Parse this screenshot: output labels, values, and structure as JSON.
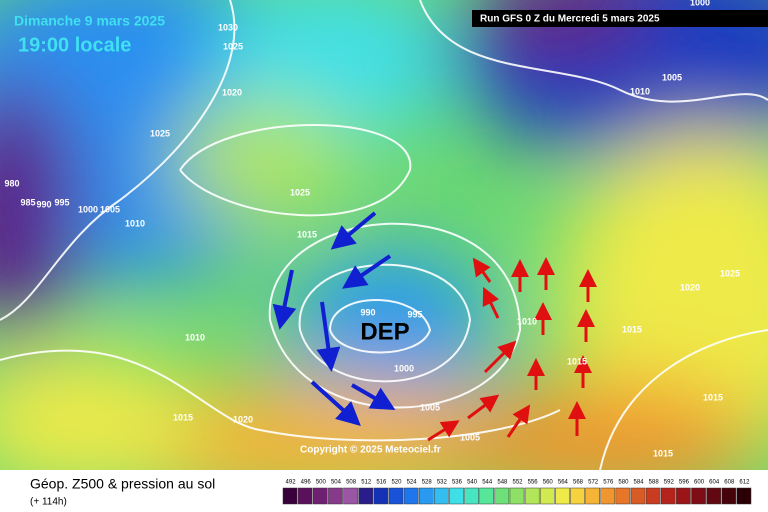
{
  "header": {
    "date": "Dimanche 9 mars 2025",
    "time": "19:00 locale",
    "run": "Run GFS 0 Z du Mercredi 5 mars 2025"
  },
  "map": {
    "low_label": "DEP",
    "copyright": "Copyright © 2025 Meteociel.fr",
    "isobar_labels": [
      "1030",
      "1025",
      "1020",
      "1025",
      "980",
      "985",
      "990",
      "995",
      "1000",
      "1005",
      "1010",
      "1025",
      "1015",
      "990",
      "995",
      "1000",
      "1005",
      "1005",
      "1010",
      "1015",
      "1010",
      "1015",
      "1020",
      "1015",
      "1015",
      "1015",
      "1020",
      "1025",
      "1005",
      "1010",
      "1000"
    ]
  },
  "footer": {
    "title": "Géop. Z500 & pression au sol",
    "lead": "(+ 114h)",
    "scale": [
      {
        "label": "492",
        "color": "#3a003a"
      },
      {
        "label": "496",
        "color": "#5a105a"
      },
      {
        "label": "500",
        "color": "#702070"
      },
      {
        "label": "504",
        "color": "#863a8a"
      },
      {
        "label": "508",
        "color": "#9a55a4"
      },
      {
        "label": "512",
        "color": "#2a1c8a"
      },
      {
        "label": "516",
        "color": "#1632b4"
      },
      {
        "label": "520",
        "color": "#1852d8"
      },
      {
        "label": "524",
        "color": "#1f76ec"
      },
      {
        "label": "528",
        "color": "#2a9af0"
      },
      {
        "label": "532",
        "color": "#33bef0"
      },
      {
        "label": "536",
        "color": "#3fdfe8"
      },
      {
        "label": "540",
        "color": "#48e6c0"
      },
      {
        "label": "544",
        "color": "#55e69a"
      },
      {
        "label": "548",
        "color": "#6ee07a"
      },
      {
        "label": "552",
        "color": "#8fe066"
      },
      {
        "label": "556",
        "color": "#b2e65a"
      },
      {
        "label": "560",
        "color": "#d2ea52"
      },
      {
        "label": "564",
        "color": "#eeea4a"
      },
      {
        "label": "568",
        "color": "#f6d23e"
      },
      {
        "label": "572",
        "color": "#f6b436"
      },
      {
        "label": "576",
        "color": "#f0962e"
      },
      {
        "label": "580",
        "color": "#e67628"
      },
      {
        "label": "584",
        "color": "#d85a24"
      },
      {
        "label": "588",
        "color": "#c83c20"
      },
      {
        "label": "592",
        "color": "#b4241c"
      },
      {
        "label": "596",
        "color": "#9a1418"
      },
      {
        "label": "600",
        "color": "#7e0c14"
      },
      {
        "label": "604",
        "color": "#620810"
      },
      {
        "label": "608",
        "color": "#46040a"
      },
      {
        "label": "612",
        "color": "#2a0006"
      }
    ]
  }
}
